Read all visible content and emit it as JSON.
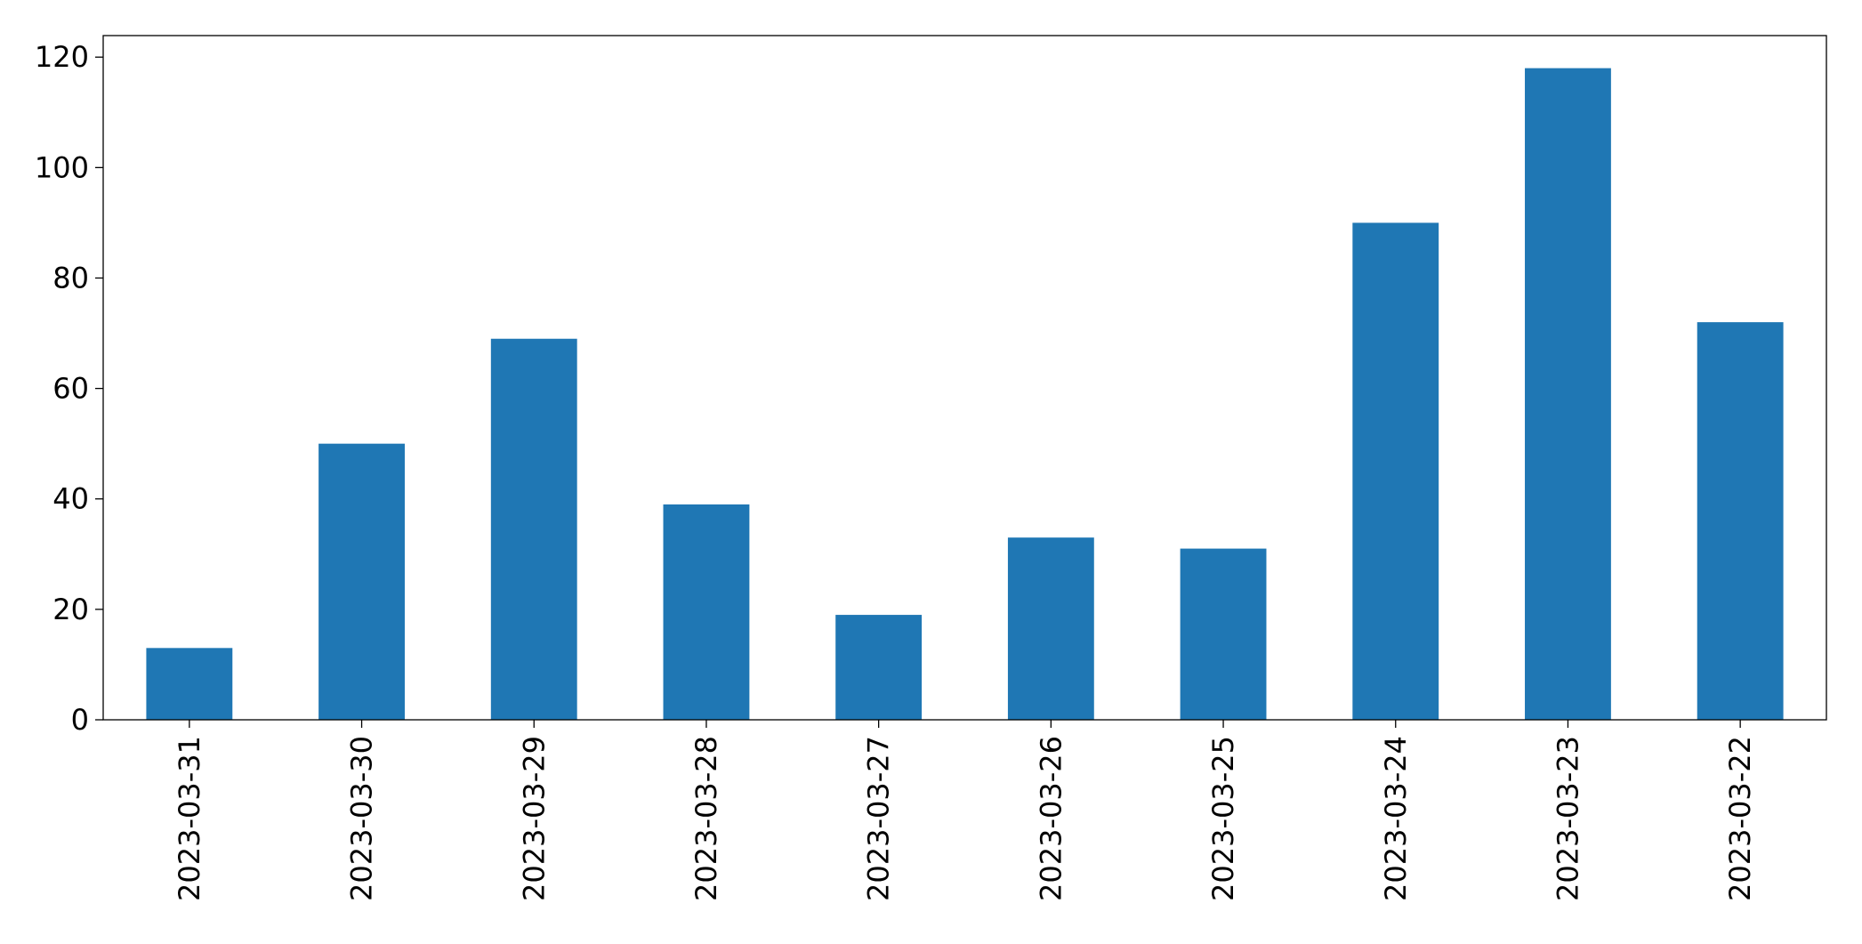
{
  "chart_data": {
    "type": "bar",
    "categories": [
      "2023-03-31",
      "2023-03-30",
      "2023-03-29",
      "2023-03-28",
      "2023-03-27",
      "2023-03-26",
      "2023-03-25",
      "2023-03-24",
      "2023-03-23",
      "2023-03-22"
    ],
    "values": [
      13,
      50,
      69,
      39,
      19,
      33,
      31,
      90,
      118,
      72
    ],
    "color": "#1f77b4",
    "ylim": [
      0,
      123.9
    ],
    "yticks": [
      0,
      20,
      40,
      60,
      80,
      100,
      120
    ],
    "grid": false
  }
}
